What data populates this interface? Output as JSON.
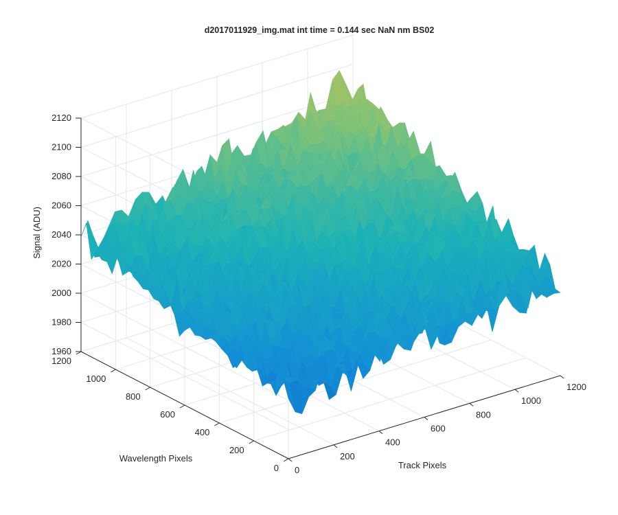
{
  "chart_data": {
    "type": "surface",
    "title": "d2017011929_img.mat int time = 0.144 sec  NaN nm BS02",
    "xlabel": "Track Pixels",
    "ylabel": "Wavelength Pixels",
    "zlabel": "Signal (ADU)",
    "xlim": [
      0,
      1200
    ],
    "ylim": [
      0,
      1200
    ],
    "zlim": [
      1960,
      2120
    ],
    "x_ticks": [
      0,
      200,
      400,
      600,
      800,
      1000,
      1200
    ],
    "y_ticks": [
      0,
      200,
      400,
      600,
      800,
      1000,
      1200
    ],
    "z_ticks": [
      1960,
      1980,
      2000,
      2020,
      2040,
      2060,
      2080,
      2100,
      2120
    ],
    "grid": true,
    "colormap": "parula",
    "surface_summary": {
      "typical_signal_range": [
        1990,
        2060
      ],
      "peak_signal": 2110,
      "min_signal": 1967,
      "description_points": [
        {
          "x": 0,
          "y": 1200,
          "z": 2035
        },
        {
          "x": 1200,
          "y": 1200,
          "z": 2085
        },
        {
          "x": 1200,
          "y": 0,
          "z": 2025
        },
        {
          "x": 0,
          "y": 0,
          "z": 2000
        },
        {
          "x": 600,
          "y": 600,
          "z": 2030
        }
      ]
    }
  }
}
